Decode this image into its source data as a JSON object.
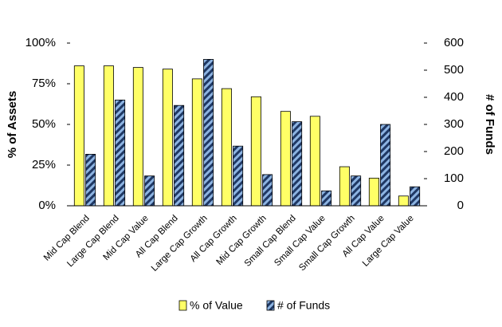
{
  "chart_data": {
    "type": "bar",
    "categories": [
      "Mid Cap Blend",
      "Large Cap Blend",
      "Mid Cap Value",
      "All Cap Blend",
      "Large Cap Growth",
      "All Cap Growth",
      "Mid Cap Growth",
      "Small Cap Blend",
      "Small Cap Value",
      "Small Cap Growth",
      "All Cap Value",
      "Large Cap Value"
    ],
    "series": [
      {
        "name": "% of Value",
        "color": "#ffff66",
        "values": [
          86,
          86,
          85,
          84,
          78,
          72,
          67,
          58,
          55,
          24,
          17,
          6
        ]
      },
      {
        "name": "# of Funds",
        "color": "#1f3864",
        "axis": "y2",
        "values": [
          190,
          390,
          110,
          370,
          540,
          220,
          115,
          310,
          55,
          110,
          300,
          70
        ]
      }
    ],
    "y_label": "% of Assets",
    "y2_label": "# of Funds",
    "ylim": [
      0,
      100
    ],
    "yticks": [
      {
        "value": 0,
        "label": "0%"
      },
      {
        "value": 25,
        "label": "25%"
      },
      {
        "value": 50,
        "label": "50%"
      },
      {
        "value": 75,
        "label": "75%"
      },
      {
        "value": 100,
        "label": "100%"
      }
    ],
    "y2lim": [
      0,
      600
    ],
    "y2ticks": [
      0,
      100,
      200,
      300,
      400,
      500,
      600
    ],
    "legend": "bottom"
  }
}
